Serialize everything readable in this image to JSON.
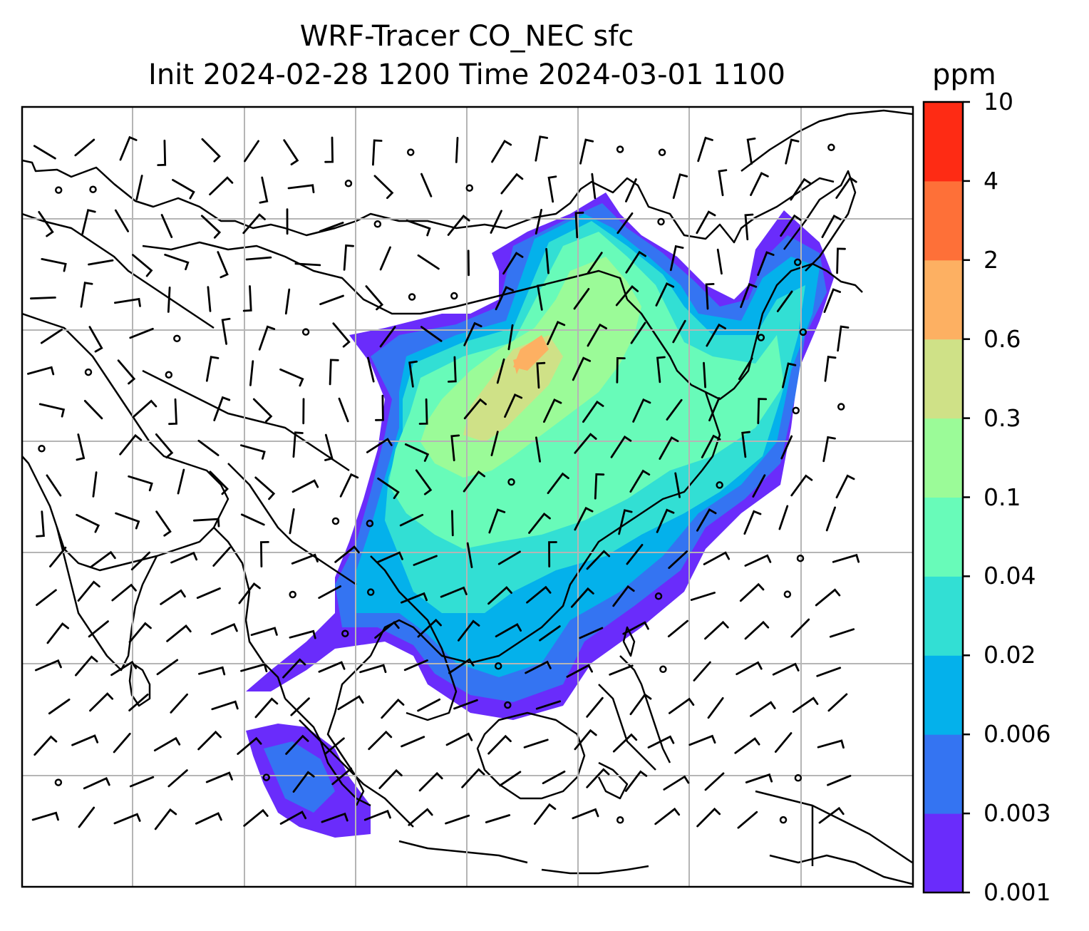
{
  "title": {
    "line1": "WRF-Tracer CO_NEC sfc",
    "line2": "Init 2024-02-28 1200 Time 2024-03-01 1100"
  },
  "colorbar": {
    "unit": "ppm",
    "levels": [
      "0.001",
      "0.003",
      "0.006",
      "0.02",
      "0.04",
      "0.1",
      "0.3",
      "0.6",
      "2",
      "4",
      "10"
    ],
    "colors": [
      "#6a2cfb",
      "#3474f2",
      "#04b1eb",
      "#32dfd4",
      "#68fbb9",
      "#9bfb98",
      "#cfe187",
      "#fdb062",
      "#fe7038",
      "#fe2b14"
    ]
  },
  "map": {
    "gridlines": true,
    "features": [
      "coastlines",
      "country-borders",
      "wind-barbs",
      "tracer-fill"
    ]
  }
}
